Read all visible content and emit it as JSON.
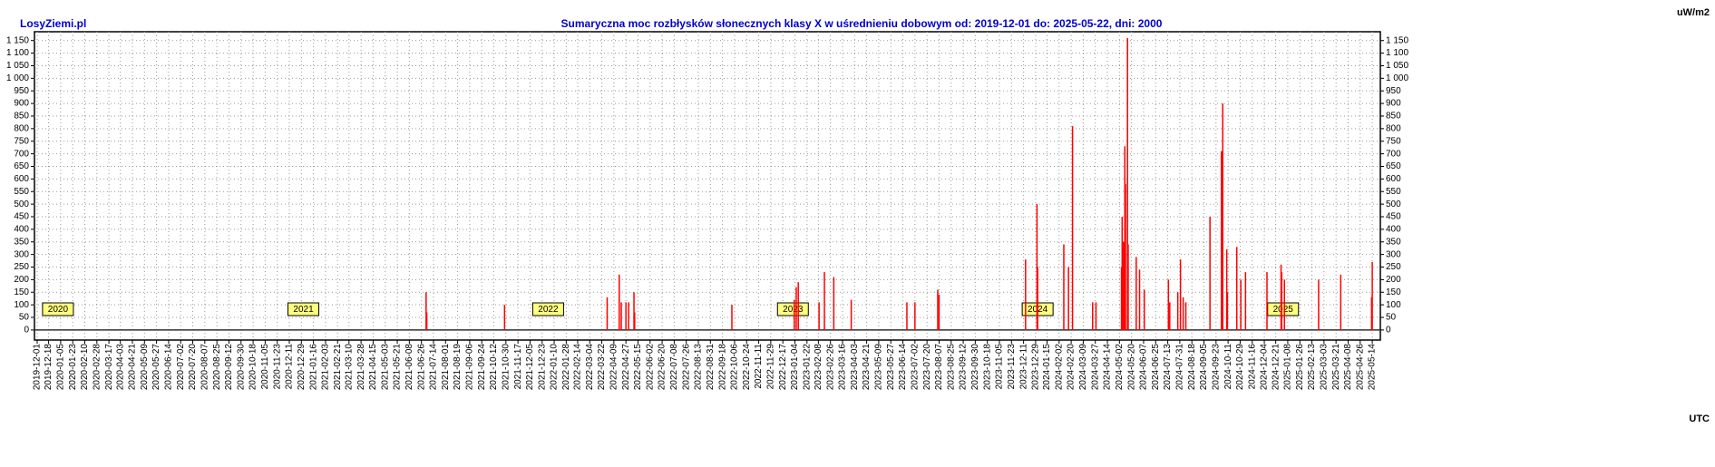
{
  "chart_data": {
    "type": "bar",
    "source": "LosyZiemi.pl",
    "title": "Sumaryczna moc rozbłysków słonecznych klasy X w uśrednieniu dobowym od: 2019-12-01 do: 2025-05-22, dni: 2000",
    "y_unit": "uW/m2",
    "x_unit": "UTC",
    "color": "#ff0000",
    "grid": true,
    "year_labels": [
      "2020",
      "2021",
      "2022",
      "2023",
      "2024",
      "2025"
    ],
    "x": [
      "2021-07-03",
      "2021-07-04",
      "2021-10-28",
      "2022-03-30",
      "2022-04-17",
      "2022-04-20",
      "2022-04-27",
      "2022-05-01",
      "2022-05-09",
      "2022-05-10",
      "2022-10-02",
      "2023-01-03",
      "2023-01-06",
      "2023-01-09",
      "2023-02-09",
      "2023-02-17",
      "2023-03-03",
      "2023-03-29",
      "2023-06-20",
      "2023-07-02",
      "2023-08-05",
      "2023-08-07",
      "2023-12-14",
      "2023-12-31",
      "2024-01-01",
      "2024-02-09",
      "2024-02-16",
      "2024-02-22",
      "2024-03-23",
      "2024-03-28",
      "2024-05-05",
      "2024-05-06",
      "2024-05-08",
      "2024-05-09",
      "2024-05-10",
      "2024-05-11",
      "2024-05-14",
      "2024-05-15",
      "2024-05-27",
      "2024-06-01",
      "2024-06-08",
      "2024-07-14",
      "2024-07-16",
      "2024-07-28",
      "2024-08-01",
      "2024-08-05",
      "2024-08-09",
      "2024-09-14",
      "2024-10-01",
      "2024-10-03",
      "2024-10-09",
      "2024-10-10",
      "2024-10-24",
      "2024-10-30",
      "2024-11-06",
      "2024-12-08",
      "2024-12-29",
      "2024-12-30",
      "2025-01-03",
      "2025-02-23",
      "2025-03-28",
      "2025-05-13",
      "2025-05-14"
    ],
    "values": [
      150,
      70,
      100,
      130,
      220,
      110,
      110,
      110,
      150,
      70,
      100,
      120,
      170,
      190,
      110,
      230,
      210,
      120,
      110,
      110,
      160,
      140,
      280,
      500,
      250,
      340,
      250,
      810,
      110,
      110,
      250,
      450,
      350,
      330,
      730,
      580,
      1160,
      340,
      290,
      240,
      160,
      200,
      110,
      150,
      280,
      130,
      110,
      450,
      710,
      900,
      320,
      150,
      330,
      200,
      230,
      230,
      260,
      230,
      200,
      200,
      220,
      130,
      270
    ],
    "xlim": [
      "2019-12-01",
      "2025-05-22"
    ],
    "xticks": [
      "2019-12-01",
      "2019-12-18",
      "2020-01-05",
      "2020-01-23",
      "2020-02-10",
      "2020-02-28",
      "2020-03-17",
      "2020-04-03",
      "2020-04-21",
      "2020-05-09",
      "2020-05-27",
      "2020-06-14",
      "2020-07-02",
      "2020-07-20",
      "2020-08-07",
      "2020-08-25",
      "2020-09-12",
      "2020-09-30",
      "2020-10-18",
      "2020-11-05",
      "2020-11-23",
      "2020-12-11",
      "2020-12-29",
      "2021-01-16",
      "2021-02-03",
      "2021-02-21",
      "2021-03-10",
      "2021-03-28",
      "2021-04-15",
      "2021-05-03",
      "2021-05-21",
      "2021-06-08",
      "2021-06-26",
      "2021-07-14",
      "2021-08-01",
      "2021-08-19",
      "2021-09-06",
      "2021-09-24",
      "2021-10-12",
      "2021-10-30",
      "2021-11-17",
      "2021-12-05",
      "2021-12-23",
      "2022-01-10",
      "2022-01-28",
      "2022-02-14",
      "2022-03-04",
      "2022-03-22",
      "2022-04-09",
      "2022-04-27",
      "2022-05-15",
      "2022-06-02",
      "2022-06-20",
      "2022-07-08",
      "2022-07-26",
      "2022-08-13",
      "2022-08-31",
      "2022-09-18",
      "2022-10-06",
      "2022-10-24",
      "2022-11-11",
      "2022-11-29",
      "2022-12-17",
      "2023-01-04",
      "2023-01-22",
      "2023-02-08",
      "2023-02-26",
      "2023-03-16",
      "2023-04-03",
      "2023-04-21",
      "2023-05-09",
      "2023-05-27",
      "2023-06-14",
      "2023-07-02",
      "2023-07-20",
      "2023-08-07",
      "2023-08-25",
      "2023-09-12",
      "2023-09-30",
      "2023-10-18",
      "2023-11-05",
      "2023-11-23",
      "2023-12-11",
      "2023-12-29",
      "2024-01-15",
      "2024-02-02",
      "2024-02-20",
      "2024-03-09",
      "2024-03-27",
      "2024-04-14",
      "2024-05-02",
      "2024-05-20",
      "2024-06-07",
      "2024-06-25",
      "2024-07-13",
      "2024-07-31",
      "2024-08-18",
      "2024-09-05",
      "2024-09-23",
      "2024-10-11",
      "2024-10-29",
      "2024-11-16",
      "2024-12-04",
      "2024-12-21",
      "2025-01-08",
      "2025-01-26",
      "2025-02-13",
      "2025-03-03",
      "2025-03-21",
      "2025-04-08",
      "2025-04-26",
      "2025-05-14"
    ],
    "ylim": [
      -40,
      1185
    ],
    "yticks": [
      0,
      50,
      100,
      150,
      200,
      250,
      300,
      350,
      400,
      450,
      500,
      550,
      600,
      650,
      700,
      750,
      800,
      850,
      900,
      950,
      {
        "value": 1000,
        "label": "1 000"
      },
      {
        "value": 1050,
        "label": "1 050"
      },
      {
        "value": 1100,
        "label": "1 100"
      },
      {
        "value": 1150,
        "label": "1 150"
      }
    ]
  }
}
